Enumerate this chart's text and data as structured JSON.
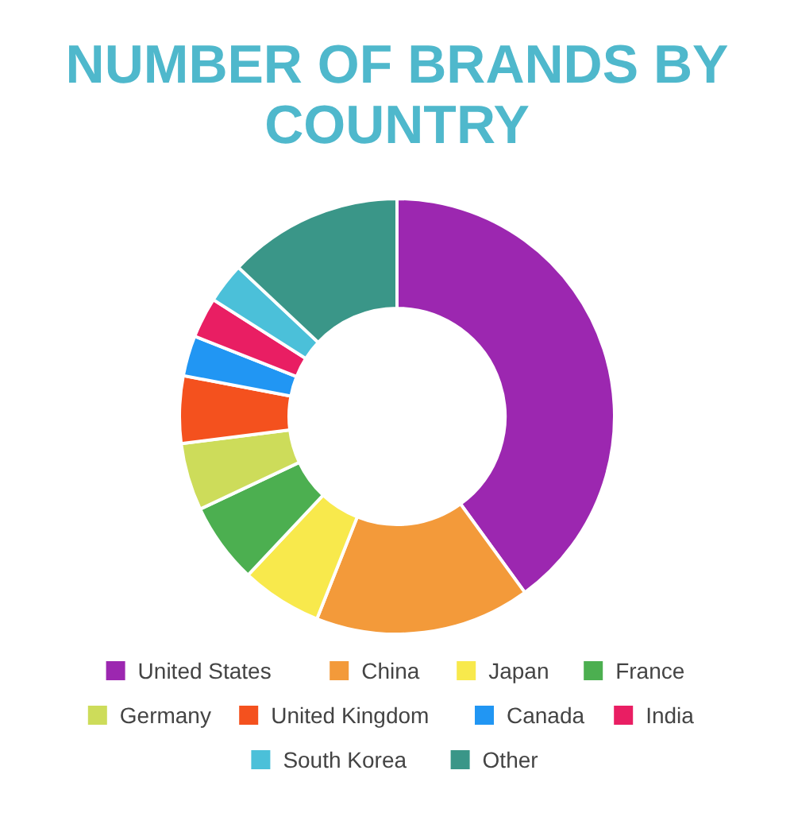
{
  "chart_data": {
    "type": "donut",
    "title": "NUMBER OF BRANDS BY COUNTRY",
    "categories": [
      "United States",
      "China",
      "Japan",
      "France",
      "Germany",
      "United Kingdom",
      "Canada",
      "India",
      "South Korea",
      "Other"
    ],
    "values": [
      40,
      16,
      6,
      6,
      5,
      5,
      3,
      3,
      3,
      13
    ],
    "colors": [
      "#9c27b0",
      "#f39a3a",
      "#f8e94c",
      "#4caf50",
      "#cddc5a",
      "#f4511e",
      "#2196f3",
      "#e91e63",
      "#4bc0d9",
      "#3a9688"
    ],
    "legend": "bottom"
  }
}
